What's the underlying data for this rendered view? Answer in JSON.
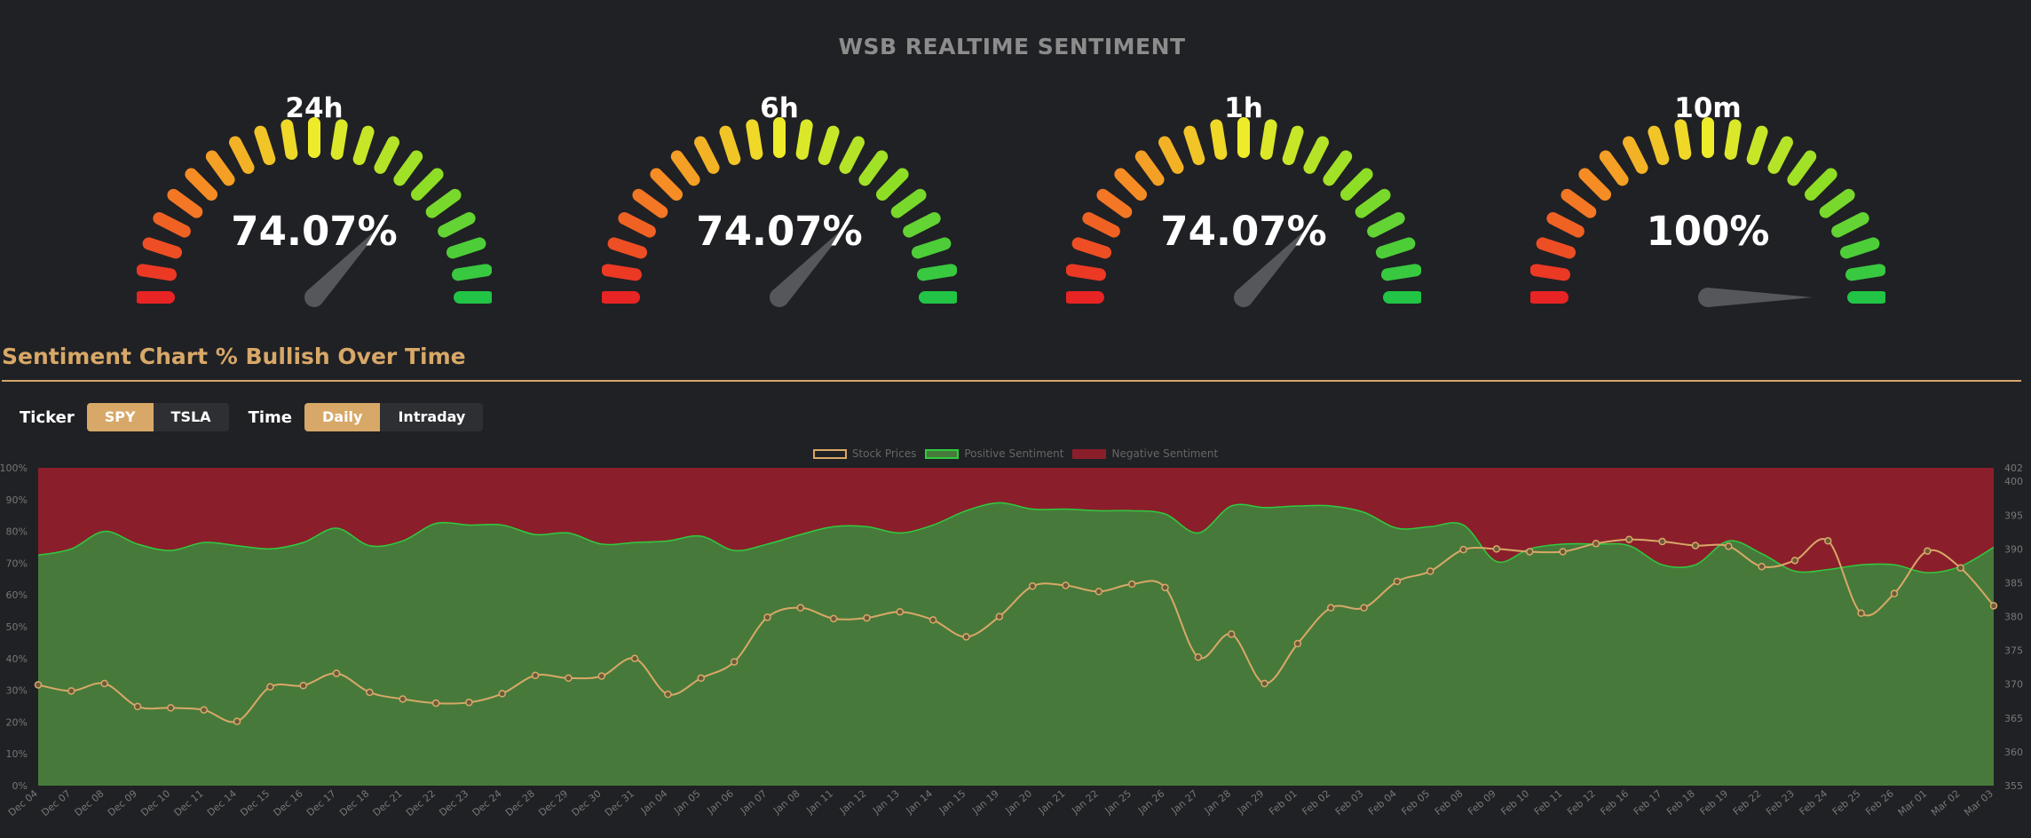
{
  "page": {
    "title": "WSB REALTIME SENTIMENT"
  },
  "gauges": [
    {
      "label": "24h",
      "value_text": "74.07%",
      "value": 74.07
    },
    {
      "label": "6h",
      "value_text": "74.07%",
      "value": 74.07
    },
    {
      "label": "1h",
      "value_text": "74.07%",
      "value": 74.07
    },
    {
      "label": "10m",
      "value_text": "100%",
      "value": 100
    }
  ],
  "section": {
    "title": "Sentiment Chart % Bullish Over Time"
  },
  "controls": {
    "ticker_label": "Ticker",
    "ticker_options": [
      "SPY",
      "TSLA"
    ],
    "ticker_selected": "SPY",
    "time_label": "Time",
    "time_options": [
      "Daily",
      "Intraday"
    ],
    "time_selected": "Daily"
  },
  "colors": {
    "positive": "#477a3a",
    "negative": "#8a1f2b",
    "price": "#d8a868",
    "accent": "#d8a868"
  },
  "chart_data": {
    "type": "area",
    "categories": [
      "Dec 04",
      "Dec 07",
      "Dec 08",
      "Dec 09",
      "Dec 10",
      "Dec 11",
      "Dec 14",
      "Dec 15",
      "Dec 16",
      "Dec 17",
      "Dec 18",
      "Dec 21",
      "Dec 22",
      "Dec 23",
      "Dec 24",
      "Dec 28",
      "Dec 29",
      "Dec 30",
      "Dec 31",
      "Jan 04",
      "Jan 05",
      "Jan 06",
      "Jan 07",
      "Jan 08",
      "Jan 11",
      "Jan 12",
      "Jan 13",
      "Jan 14",
      "Jan 15",
      "Jan 19",
      "Jan 20",
      "Jan 21",
      "Jan 22",
      "Jan 25",
      "Jan 26",
      "Jan 27",
      "Jan 28",
      "Jan 29",
      "Feb 01",
      "Feb 02",
      "Feb 03",
      "Feb 04",
      "Feb 05",
      "Feb 08",
      "Feb 09",
      "Feb 10",
      "Feb 11",
      "Feb 12",
      "Feb 16",
      "Feb 17",
      "Feb 18",
      "Feb 19",
      "Feb 22",
      "Feb 23",
      "Feb 24",
      "Feb 25",
      "Feb 26",
      "Mar 01",
      "Mar 02",
      "Mar 03"
    ],
    "series": [
      {
        "name": "Stock Prices",
        "axis": "right",
        "values": [
          369.9,
          369.0,
          370.1,
          366.7,
          366.5,
          366.2,
          364.5,
          369.6,
          369.8,
          371.6,
          368.8,
          367.8,
          367.2,
          367.3,
          368.6,
          371.3,
          370.9,
          371.2,
          373.8,
          368.5,
          370.9,
          373.3,
          379.9,
          381.3,
          379.7,
          379.8,
          380.7,
          379.5,
          377.0,
          380.0,
          384.5,
          384.6,
          383.7,
          384.8,
          384.3,
          374.0,
          377.4,
          370.1,
          376.0,
          381.3,
          381.3,
          385.2,
          386.7,
          389.9,
          390.0,
          389.6,
          389.6,
          390.8,
          391.4,
          391.1,
          390.5,
          390.4,
          387.4,
          388.3,
          391.2,
          380.5,
          383.4,
          389.7,
          387.2,
          381.6
        ]
      },
      {
        "name": "Positive Sentiment",
        "axis": "left",
        "values": [
          72.5,
          74.5,
          80,
          76,
          74,
          76.5,
          75.5,
          74.5,
          76.5,
          81,
          75.5,
          77,
          82.5,
          82,
          82,
          79,
          79.5,
          76,
          76.5,
          77,
          78.5,
          74,
          76,
          79,
          81.5,
          81.5,
          79.5,
          82,
          86.5,
          89,
          87,
          87,
          86.5,
          86.5,
          85.5,
          79.5,
          88,
          87.5,
          88,
          88,
          86,
          81,
          81.5,
          82,
          70.5,
          74.5,
          76,
          76,
          75.5,
          69.5,
          69.5,
          77,
          73,
          67.5,
          68,
          69.5,
          69.5,
          67,
          69,
          75
        ]
      },
      {
        "name": "Negative Sentiment",
        "axis": "left",
        "fill": "remainder to 100%"
      }
    ],
    "y_left": {
      "ticks": [
        "0%",
        "10%",
        "20%",
        "30%",
        "40%",
        "50%",
        "60%",
        "70%",
        "80%",
        "90%",
        "100%"
      ],
      "range": [
        0,
        100
      ]
    },
    "y_right": {
      "ticks": [
        "355",
        "360",
        "365",
        "370",
        "375",
        "380",
        "385",
        "390",
        "395",
        "400",
        "402"
      ],
      "range": [
        355,
        402
      ]
    },
    "legend": {
      "position": "top-center"
    }
  }
}
